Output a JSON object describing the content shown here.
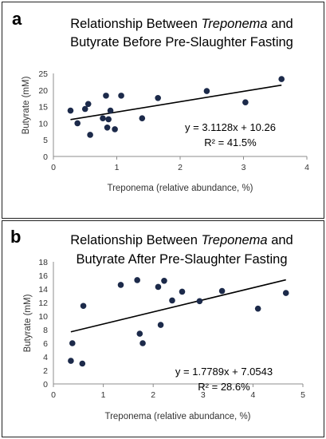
{
  "chart_data": [
    {
      "panel_label": "a",
      "type": "scatter",
      "title_parts": [
        "Relationship Between ",
        "Treponema",
        " and"
      ],
      "title_line2": "Butyrate Before Pre-Slaughter Fasting",
      "xlabel": "Treponema (relative abundance, %)",
      "ylabel": "Butyrate (mM)",
      "xlim": [
        0,
        4
      ],
      "ylim": [
        0,
        25
      ],
      "xticks": [
        "0",
        "1",
        "2",
        "3",
        "4"
      ],
      "yticks": [
        "0",
        "5",
        "10",
        "15",
        "20",
        "25"
      ],
      "grid": false,
      "points": [
        {
          "x": 0.27,
          "y": 13.8
        },
        {
          "x": 0.38,
          "y": 10.0
        },
        {
          "x": 0.5,
          "y": 14.3
        },
        {
          "x": 0.55,
          "y": 15.8
        },
        {
          "x": 0.58,
          "y": 6.5
        },
        {
          "x": 0.78,
          "y": 11.5
        },
        {
          "x": 0.83,
          "y": 18.3
        },
        {
          "x": 0.85,
          "y": 8.7
        },
        {
          "x": 0.87,
          "y": 11.2
        },
        {
          "x": 0.9,
          "y": 13.8
        },
        {
          "x": 0.97,
          "y": 8.2
        },
        {
          "x": 1.07,
          "y": 18.3
        },
        {
          "x": 1.4,
          "y": 11.5
        },
        {
          "x": 1.65,
          "y": 17.6
        },
        {
          "x": 2.42,
          "y": 19.7
        },
        {
          "x": 3.03,
          "y": 16.3
        },
        {
          "x": 3.6,
          "y": 23.3
        }
      ],
      "trendline": {
        "slope": 3.1128,
        "intercept": 10.26,
        "x_range": [
          0.27,
          3.6
        ]
      },
      "equation": "y = 3.1128x + 10.26",
      "r2": "R² = 41.5%"
    },
    {
      "panel_label": "b",
      "type": "scatter",
      "title_parts": [
        "Relationship Between ",
        "Treponema",
        " and"
      ],
      "title_line2": "Butyrate After Pre-Slaughter Fasting",
      "xlabel": "Treponema (relative abundance, %)",
      "ylabel": "Butyrate (mM)",
      "xlim": [
        0,
        5
      ],
      "ylim": [
        0,
        18
      ],
      "xticks": [
        "0",
        "1",
        "2",
        "3",
        "4",
        "5"
      ],
      "yticks": [
        "0",
        "2",
        "4",
        "6",
        "8",
        "10",
        "12",
        "14",
        "16",
        "18"
      ],
      "grid": false,
      "points": [
        {
          "x": 0.35,
          "y": 3.4
        },
        {
          "x": 0.38,
          "y": 6.0
        },
        {
          "x": 0.58,
          "y": 3.0
        },
        {
          "x": 0.6,
          "y": 11.5
        },
        {
          "x": 1.35,
          "y": 14.6
        },
        {
          "x": 1.68,
          "y": 15.3
        },
        {
          "x": 1.73,
          "y": 7.4
        },
        {
          "x": 1.79,
          "y": 6.0
        },
        {
          "x": 2.1,
          "y": 14.3
        },
        {
          "x": 2.15,
          "y": 8.7
        },
        {
          "x": 2.22,
          "y": 15.2
        },
        {
          "x": 2.38,
          "y": 12.3
        },
        {
          "x": 2.58,
          "y": 13.6
        },
        {
          "x": 2.93,
          "y": 12.2
        },
        {
          "x": 3.38,
          "y": 13.7
        },
        {
          "x": 4.1,
          "y": 11.1
        },
        {
          "x": 4.66,
          "y": 13.4
        }
      ],
      "trendline": {
        "slope": 1.7789,
        "intercept": 7.0543,
        "x_range": [
          0.35,
          4.66
        ]
      },
      "equation": "y = 1.7789x + 7.0543",
      "r2": "R² = 28.6%"
    }
  ]
}
